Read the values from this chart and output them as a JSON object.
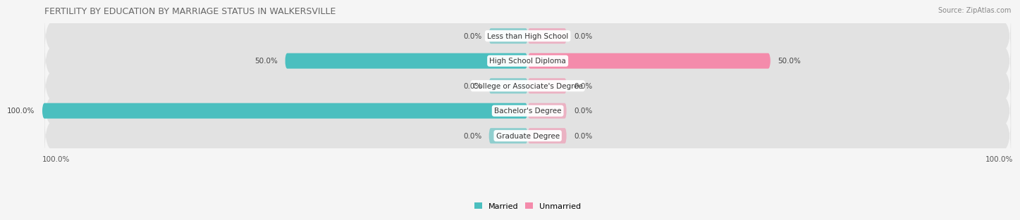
{
  "title": "FERTILITY BY EDUCATION BY MARRIAGE STATUS IN WALKERSVILLE",
  "source": "Source: ZipAtlas.com",
  "categories": [
    "Less than High School",
    "High School Diploma",
    "College or Associate's Degree",
    "Bachelor's Degree",
    "Graduate Degree"
  ],
  "married_values": [
    0.0,
    50.0,
    0.0,
    100.0,
    0.0
  ],
  "unmarried_values": [
    0.0,
    50.0,
    0.0,
    0.0,
    0.0
  ],
  "married_color": "#4bbfbf",
  "unmarried_color": "#f48bab",
  "fig_bg_color": "#f5f5f5",
  "row_bg_color": "#e2e2e2",
  "axis_limit": 100.0,
  "title_fontsize": 9,
  "source_fontsize": 7,
  "label_fontsize": 7.5,
  "category_fontsize": 7.5,
  "legend_fontsize": 8,
  "small_bar_width": 8
}
